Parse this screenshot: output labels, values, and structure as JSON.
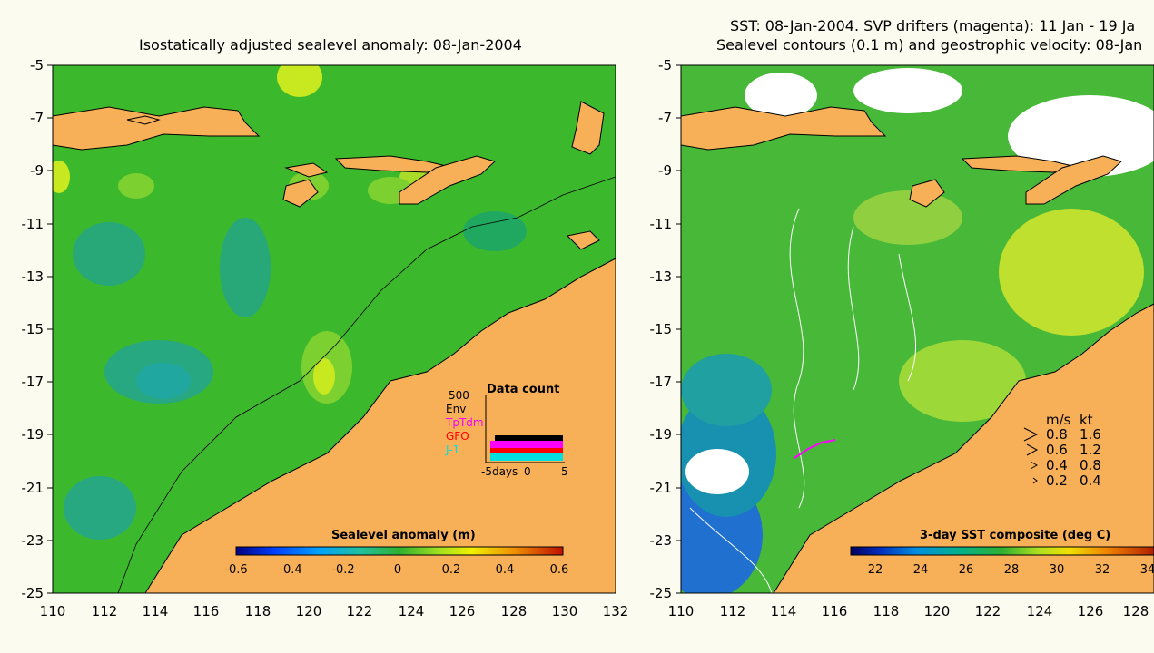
{
  "left_panel": {
    "title": "Isostatically adjusted sealevel anomaly: 08-Jan-2004",
    "y_ticks": [
      "-5",
      "-7",
      "-9",
      "-11",
      "-13",
      "-15",
      "-17",
      "-19",
      "-21",
      "-23",
      "-25"
    ],
    "x_ticks": [
      "110",
      "112",
      "114",
      "116",
      "118",
      "120",
      "122",
      "124",
      "126",
      "128",
      "130",
      "132"
    ],
    "colorbar": {
      "title": "Sealevel anomaly (m)",
      "ticks": [
        "-0.6",
        "-0.4",
        "-0.2",
        "0",
        "0.2",
        "0.4",
        "0.6"
      ],
      "range": [
        -0.6,
        0.6
      ]
    },
    "data_count": {
      "title": "Data count",
      "max_label": "500",
      "missions": [
        {
          "name": "Env",
          "color": "#000000"
        },
        {
          "name": "TpTdm",
          "color": "#ff00ff"
        },
        {
          "name": "GFO",
          "color": "#ff0000"
        },
        {
          "name": "J-1",
          "color": "#00e0e0"
        }
      ],
      "x_ticks": [
        "-5days",
        "0",
        "5"
      ]
    }
  },
  "right_panel": {
    "title_line1": "SST: 08-Jan-2004. SVP drifters (magenta): 11 Jan - 19 Ja",
    "title_line2": "Sealevel contours (0.1 m) and geostrophic velocity: 08-Jan",
    "y_ticks": [
      "-5",
      "-7",
      "-9",
      "-11",
      "-13",
      "-15",
      "-17",
      "-19",
      "-21",
      "-23",
      "-25"
    ],
    "x_ticks": [
      "110",
      "112",
      "114",
      "116",
      "118",
      "120",
      "122",
      "124",
      "126",
      "128"
    ],
    "colorbar": {
      "title": "3-day SST composite (deg C)",
      "ticks": [
        "22",
        "24",
        "26",
        "28",
        "30",
        "32",
        "34"
      ],
      "range": [
        21,
        35
      ]
    },
    "speed_legend": {
      "header_ms": "m/s",
      "header_kt": "kt",
      "rows": [
        {
          "ms": "0.8",
          "kt": "1.6"
        },
        {
          "ms": "0.6",
          "kt": "1.2"
        },
        {
          "ms": "0.4",
          "kt": "0.8"
        },
        {
          "ms": "0.2",
          "kt": "0.4"
        }
      ]
    }
  },
  "colors": {
    "land": "#f8b058",
    "ocean_green": "#3cb82c",
    "background": "#fbfbef"
  }
}
